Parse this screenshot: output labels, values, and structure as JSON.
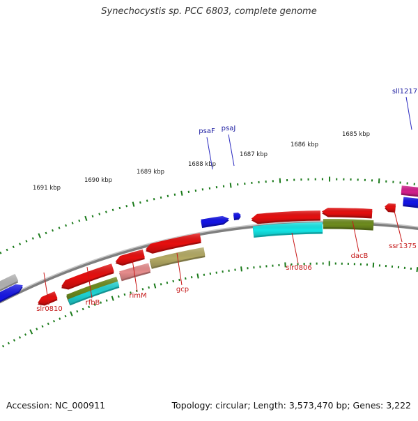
{
  "title": "Synechocystis sp. PCC 6803, complete genome",
  "footer": {
    "accession": "Accession: NC_000911",
    "summary": "Topology: circular; Length: 3,573,470 bp; Genes: 3,222"
  },
  "colors": {
    "background": "#ffffff",
    "backbone": "#7f7f7f",
    "ruler": "#1a7a1a",
    "forward_label": "#1a1aa0",
    "reverse_label": "#c41818",
    "label_line_forward": "#2a2ac0",
    "label_line_reverse": "#c81818"
  },
  "ruler_ticks": [
    "1691 kbp",
    "1690 kbp",
    "1689 kbp",
    "1688 kbp",
    "1687 kbp",
    "1686 kbp",
    "1685 kbp"
  ],
  "gene_labels": {
    "forward": [
      "psaF",
      "psaJ",
      "sll1217"
    ],
    "reverse": [
      "slr0810",
      "rfbB",
      "rimM",
      "gcp",
      "slr0806",
      "dacB",
      "ssr1375"
    ]
  },
  "features": [
    {
      "name": "left-gray-feature",
      "color": "#b4b4b4"
    },
    {
      "name": "left-blue-feature",
      "color": "#1414e6"
    },
    {
      "name": "psaF-gene",
      "color": "#1414e6"
    },
    {
      "name": "psaJ-gene",
      "color": "#1414e6"
    },
    {
      "name": "sll1217-gene",
      "color": "#1414e6"
    },
    {
      "name": "magenta-feature",
      "color": "#d21e8c"
    },
    {
      "name": "slr0810-gene",
      "color": "#e60f0f"
    },
    {
      "name": "rfbB-gene",
      "color": "#e60f0f"
    },
    {
      "name": "rimM-gene",
      "color": "#e60f0f"
    },
    {
      "name": "gcp-gene",
      "color": "#e60f0f"
    },
    {
      "name": "slr0806-gene",
      "color": "#e60f0f"
    },
    {
      "name": "dacB-gene",
      "color": "#e60f0f"
    },
    {
      "name": "ssr1375-gene",
      "color": "#e60f0f"
    },
    {
      "name": "rfbB-olive-feature",
      "color": "#6e8c1e"
    },
    {
      "name": "rfbB-cyan-feature",
      "color": "#1ed2d2"
    },
    {
      "name": "rimM-pink-feature",
      "color": "#e68c8c"
    },
    {
      "name": "gcp-khaki-feature",
      "color": "#b4aa64"
    },
    {
      "name": "slr0806-cyan-feature",
      "color": "#14e6e6"
    },
    {
      "name": "dacB-olive-feature",
      "color": "#6e8c1e"
    }
  ]
}
